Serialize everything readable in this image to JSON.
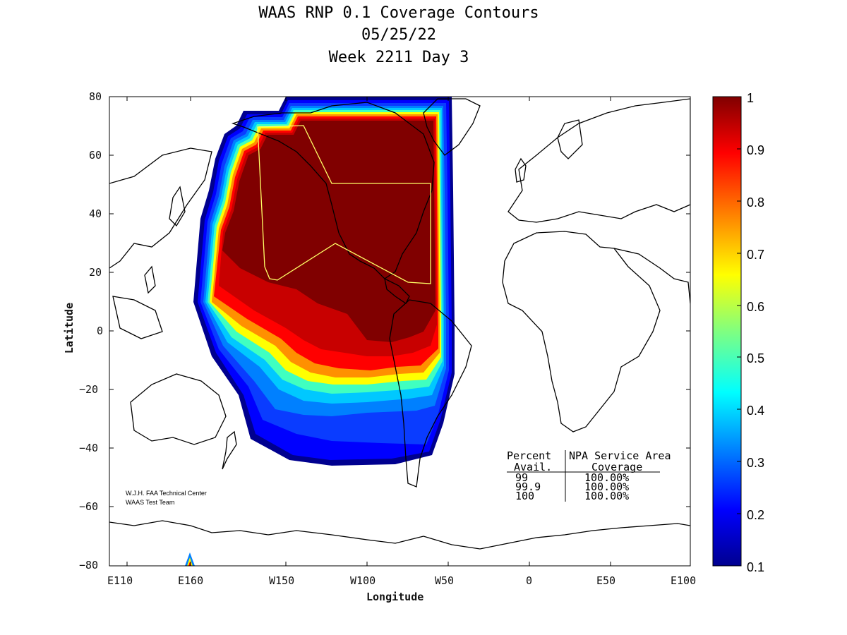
{
  "chart_data": {
    "type": "heatmap",
    "title": "WAAS RNP 0.1 Coverage Contours",
    "subtitle_date": "05/25/22",
    "subtitle_week": "Week 2211 Day 3",
    "xlabel": "Longitude",
    "ylabel": "Latitude",
    "x_tick_labels": [
      "E110",
      "E160",
      "W150",
      "W100",
      "W50",
      "0",
      "E50",
      "E100"
    ],
    "y_tick_labels": [
      "80",
      "60",
      "40",
      "20",
      "0",
      "−20",
      "−40",
      "−60",
      "−80"
    ],
    "xlim": [
      110,
      460
    ],
    "ylim": [
      -80,
      80
    ],
    "colorbar": {
      "min": 0.1,
      "max": 1,
      "tick_labels": [
        "1",
        "0.9",
        "0.8",
        "0.7",
        "0.6",
        "0.5",
        "0.4",
        "0.3",
        "0.2",
        "0.1"
      ],
      "colors": [
        "#00008f",
        "#0000ff",
        "#0080ff",
        "#00ffff",
        "#80ff80",
        "#ffff00",
        "#ff8000",
        "#ff0000",
        "#800000"
      ]
    },
    "coverage_region_note": "Availability contours over North Pacific / North America; 1.0 over North America, decreasing southward",
    "service_area_table": {
      "header_left": "Percent",
      "header_right": "NPA Service Area",
      "sub_left": "Avail.",
      "sub_right": "Coverage",
      "rows": [
        {
          "avail": "99",
          "coverage": "100.00%"
        },
        {
          "avail": "99.9",
          "coverage": "100.00%"
        },
        {
          "avail": "100",
          "coverage": "100.00%"
        }
      ]
    },
    "credit_line1": "W.J.H. FAA Technical Center",
    "credit_line2": "WAAS Test Team"
  }
}
